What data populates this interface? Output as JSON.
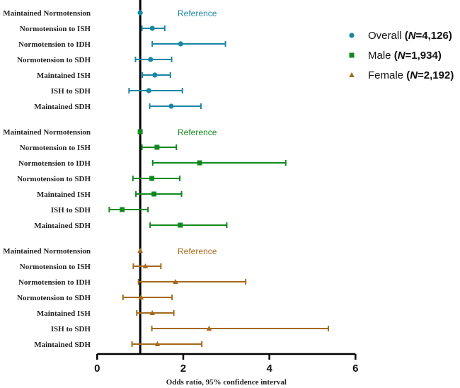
{
  "chart_data": {
    "type": "forest",
    "xlabel": "Odds ratio, 95% confidence interval",
    "xlim": [
      0,
      6
    ],
    "xticks": [
      "0",
      "2",
      "4",
      "6"
    ],
    "xtick_values": [
      0,
      2,
      4,
      6
    ],
    "reference_value": 1,
    "reference_text": "Reference",
    "legend_placement": "top-right",
    "groups": [
      {
        "name": "Overall",
        "n_text": "N=4,126",
        "n_prefix": "N",
        "n_value": "=4,126",
        "color": "#1a86a4",
        "marker": "circle",
        "rows": [
          {
            "label": "Maintained Normotension",
            "or": 1.0,
            "lo": null,
            "hi": null,
            "reference": true
          },
          {
            "label": "Normotension to ISH",
            "or": 1.28,
            "lo": 1.04,
            "hi": 1.57
          },
          {
            "label": "Normotension to IDH",
            "or": 1.94,
            "lo": 1.28,
            "hi": 2.98
          },
          {
            "label": "Normotension to SDH",
            "or": 1.24,
            "lo": 0.89,
            "hi": 1.73
          },
          {
            "label": "Maintained ISH",
            "or": 1.34,
            "lo": 1.05,
            "hi": 1.7
          },
          {
            "label": "ISH to SDH",
            "or": 1.2,
            "lo": 0.74,
            "hi": 1.98
          },
          {
            "label": "Maintained SDH",
            "or": 1.72,
            "lo": 1.22,
            "hi": 2.41
          }
        ]
      },
      {
        "name": "Male",
        "n_text": "N=1,934",
        "n_prefix": "N",
        "n_value": "=1,934",
        "color": "#11891f",
        "marker": "square",
        "rows": [
          {
            "label": "Maintained Normotension",
            "or": 1.0,
            "lo": null,
            "hi": null,
            "reference": true
          },
          {
            "label": "Normotension to ISH",
            "or": 1.39,
            "lo": 1.04,
            "hi": 1.84
          },
          {
            "label": "Normotension to IDH",
            "or": 2.38,
            "lo": 1.29,
            "hi": 4.38
          },
          {
            "label": "Normotension to SDH",
            "or": 1.27,
            "lo": 0.83,
            "hi": 1.92
          },
          {
            "label": "Maintained ISH",
            "or": 1.32,
            "lo": 0.9,
            "hi": 1.96
          },
          {
            "label": "ISH to SDH",
            "or": 0.58,
            "lo": 0.28,
            "hi": 1.18
          },
          {
            "label": "Maintained SDH",
            "or": 1.93,
            "lo": 1.23,
            "hi": 3.01
          }
        ]
      },
      {
        "name": "Female",
        "n_text": "N=2,192",
        "n_prefix": "N",
        "n_value": "=2,192",
        "color": "#a56a1c",
        "marker": "triangle",
        "rows": [
          {
            "label": "Maintained Normotension",
            "or": 1.0,
            "lo": null,
            "hi": null,
            "reference": true
          },
          {
            "label": "Normotension to ISH",
            "or": 1.12,
            "lo": 0.84,
            "hi": 1.48
          },
          {
            "label": "Normotension to IDH",
            "or": 1.82,
            "lo": 0.96,
            "hi": 3.45
          },
          {
            "label": "Normotension to SDH",
            "or": 1.02,
            "lo": 0.6,
            "hi": 1.74
          },
          {
            "label": "Maintained ISH",
            "or": 1.28,
            "lo": 0.92,
            "hi": 1.78
          },
          {
            "label": "ISH to SDH",
            "or": 2.6,
            "lo": 1.27,
            "hi": 5.37
          },
          {
            "label": "Maintained SDH",
            "or": 1.4,
            "lo": 0.81,
            "hi": 2.43
          }
        ]
      }
    ]
  }
}
